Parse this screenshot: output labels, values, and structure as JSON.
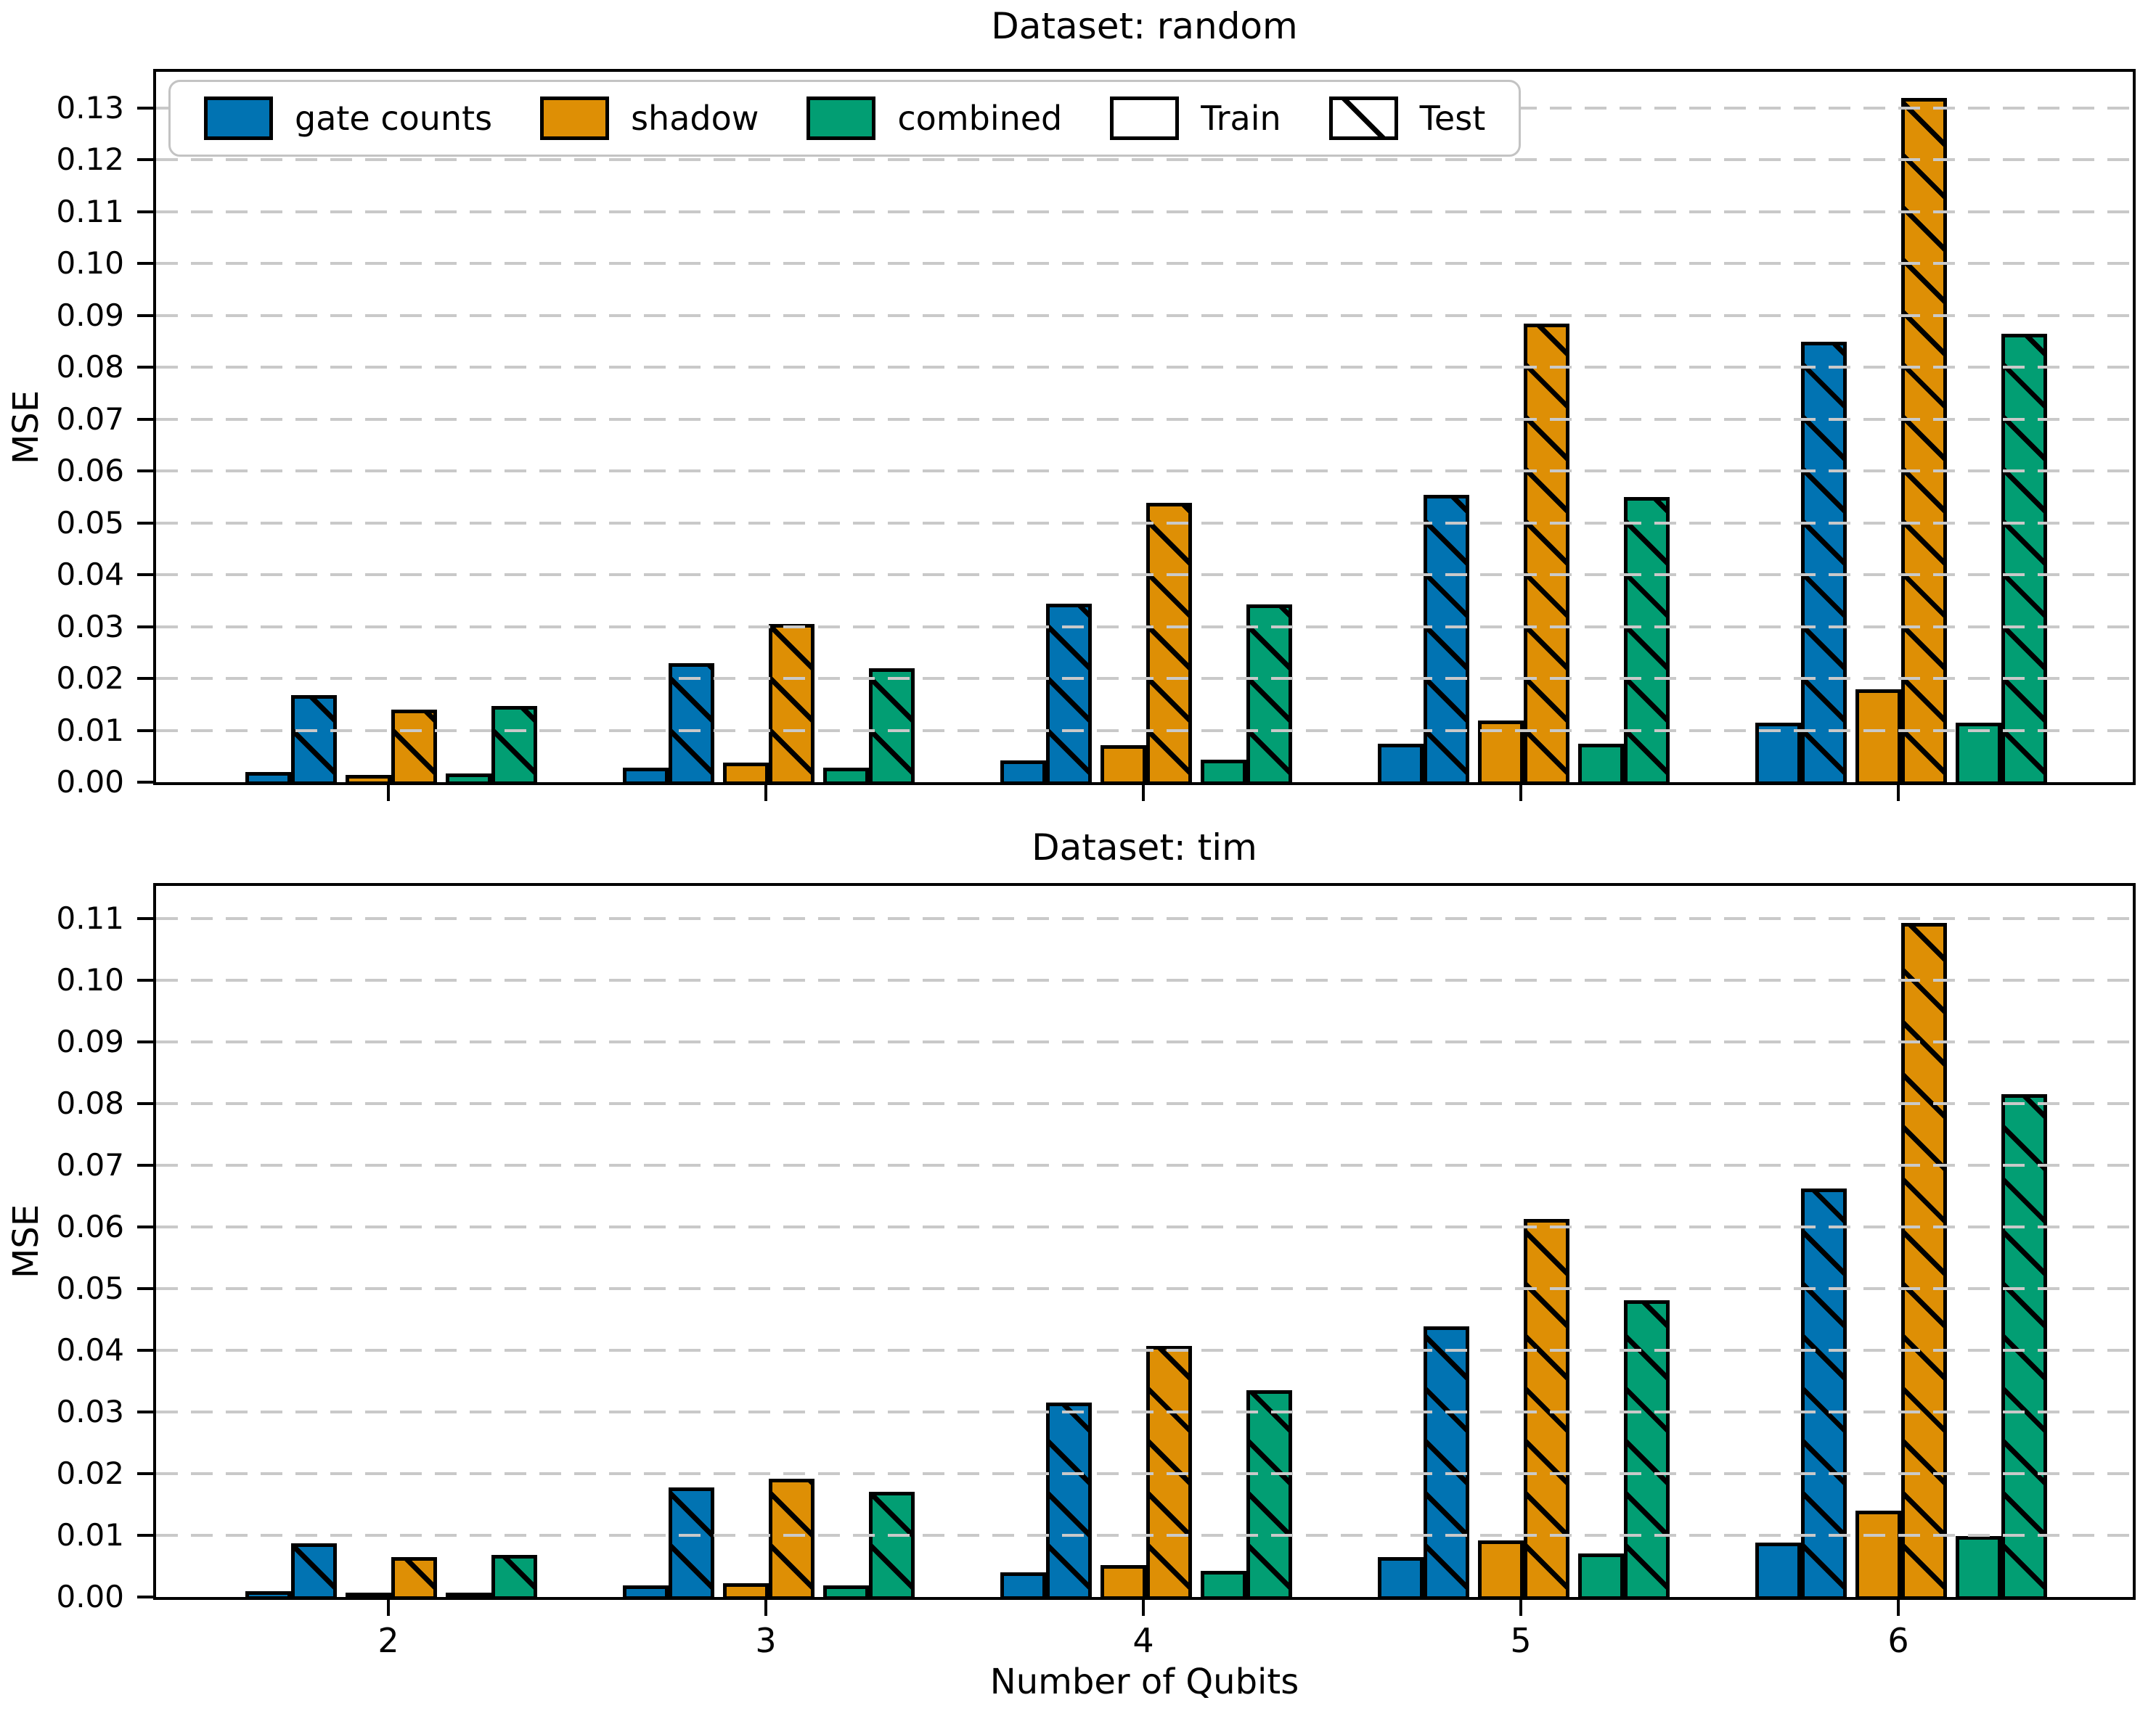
{
  "figure": {
    "background": "#ffffff",
    "ylabel": "MSE",
    "xlabel": "Number of Qubits",
    "legend": {
      "items": [
        {
          "label": "gate counts",
          "color": "#0173b2",
          "hatch": false
        },
        {
          "label": "shadow",
          "color": "#de8f05",
          "hatch": false
        },
        {
          "label": "combined",
          "color": "#029e73",
          "hatch": false
        },
        {
          "label": "Train",
          "color": "#ffffff",
          "hatch": false
        },
        {
          "label": "Test",
          "color": "#ffffff",
          "hatch": true
        }
      ]
    }
  },
  "chart_data": [
    {
      "type": "bar",
      "title": "Dataset: random",
      "ylabel": "MSE",
      "categories": [
        "2",
        "3",
        "4",
        "5",
        "6"
      ],
      "ylim": [
        0,
        0.137
      ],
      "yticks": [
        0.0,
        0.01,
        0.02,
        0.03,
        0.04,
        0.05,
        0.06,
        0.07,
        0.08,
        0.09,
        0.1,
        0.11,
        0.12,
        0.13
      ],
      "grid": "horizontal-dashed",
      "legend_position": "upper-left",
      "series": [
        {
          "name": "gate counts",
          "split": "Train",
          "color": "#0173b2",
          "hatch": false,
          "values": [
            0.0025,
            0.0034,
            0.0048,
            0.008,
            0.012
          ]
        },
        {
          "name": "gate counts",
          "split": "Test",
          "color": "#0173b2",
          "hatch": true,
          "values": [
            0.0173,
            0.0235,
            0.035,
            0.056,
            0.0855
          ]
        },
        {
          "name": "shadow",
          "split": "Train",
          "color": "#de8f05",
          "hatch": false,
          "values": [
            0.002,
            0.0043,
            0.0077,
            0.0124,
            0.0185
          ]
        },
        {
          "name": "shadow",
          "split": "Test",
          "color": "#de8f05",
          "hatch": true,
          "values": [
            0.0146,
            0.031,
            0.0545,
            0.089,
            0.1325
          ]
        },
        {
          "name": "combined",
          "split": "Train",
          "color": "#029e73",
          "hatch": false,
          "values": [
            0.0022,
            0.0033,
            0.0049,
            0.008,
            0.012
          ]
        },
        {
          "name": "combined",
          "split": "Test",
          "color": "#029e73",
          "hatch": true,
          "values": [
            0.0152,
            0.0226,
            0.0349,
            0.0555,
            0.087
          ]
        }
      ]
    },
    {
      "type": "bar",
      "title": "Dataset: tim",
      "ylabel": "MSE",
      "xlabel": "Number of Qubits",
      "categories": [
        "2",
        "3",
        "4",
        "5",
        "6"
      ],
      "ylim": [
        0,
        0.1153
      ],
      "yticks": [
        0.0,
        0.01,
        0.02,
        0.03,
        0.04,
        0.05,
        0.06,
        0.07,
        0.08,
        0.09,
        0.1,
        0.11
      ],
      "grid": "horizontal-dashed",
      "series": [
        {
          "name": "gate counts",
          "split": "Train",
          "color": "#0173b2",
          "hatch": false,
          "values": [
            0.0014,
            0.0024,
            0.0045,
            0.007,
            0.0093
          ]
        },
        {
          "name": "gate counts",
          "split": "Test",
          "color": "#0173b2",
          "hatch": true,
          "values": [
            0.0092,
            0.0182,
            0.032,
            0.0444,
            0.0667
          ]
        },
        {
          "name": "shadow",
          "split": "Train",
          "color": "#de8f05",
          "hatch": false,
          "values": [
            0.001,
            0.0027,
            0.0057,
            0.0097,
            0.0145
          ]
        },
        {
          "name": "shadow",
          "split": "Test",
          "color": "#de8f05",
          "hatch": true,
          "values": [
            0.007,
            0.0196,
            0.0412,
            0.0618,
            0.1098
          ]
        },
        {
          "name": "combined",
          "split": "Train",
          "color": "#029e73",
          "hatch": false,
          "values": [
            0.001,
            0.0024,
            0.0047,
            0.0075,
            0.0103
          ]
        },
        {
          "name": "combined",
          "split": "Test",
          "color": "#029e73",
          "hatch": true,
          "values": [
            0.0073,
            0.0175,
            0.034,
            0.0486,
            0.082
          ]
        }
      ]
    }
  ]
}
